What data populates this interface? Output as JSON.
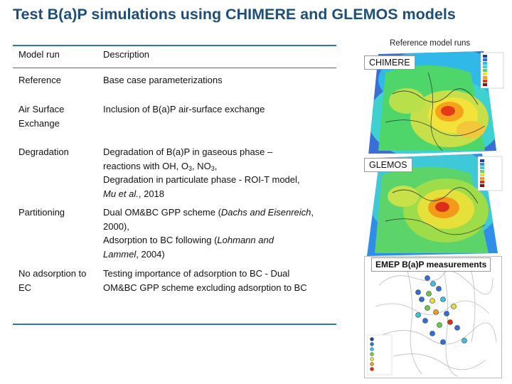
{
  "title": "Test B(a)P simulations using CHIMERE and GLEMOS models",
  "reference_caption": "Reference model runs",
  "table": {
    "headers": {
      "model_run": "Model run",
      "description": "Description"
    },
    "rows": [
      {
        "run": "Reference",
        "desc": [
          "Base case parameterizations"
        ]
      },
      {
        "run": "Air Surface Exchange",
        "desc": [
          "Inclusion of B(a)P air-surface exchange"
        ]
      },
      {
        "run": "Degradation",
        "desc": [
          "Degradation of B(a)P in gaseous phase –",
          "reactions with OH, O",
          "3",
          ", NO",
          "3",
          ",",
          "Degradation in particulate phase - ROI-T model,",
          "Mu et al.",
          ", 2018"
        ]
      },
      {
        "run": "Partitioning",
        "desc": [
          "Dual OM&BC GPP scheme (",
          "Dachs and Eisenreich",
          ",",
          "2000",
          "),",
          "Adsorption to BC following (",
          "Lohmann and",
          "Lammel",
          ", 2004)"
        ]
      },
      {
        "run": "No adsorption to EC",
        "desc": [
          "Testing importance of adsorption to BC - Dual",
          "OM&BC GPP scheme excluding adsorption to BC"
        ]
      }
    ]
  },
  "maps": {
    "chimere": {
      "label": "CHIMERE"
    },
    "glemos": {
      "label": "GLEMOS"
    },
    "emep": {
      "label": "EMEP B(a)P measurements"
    }
  },
  "colors": {
    "title": "#1f4e79",
    "rule": "#2e75b6"
  }
}
